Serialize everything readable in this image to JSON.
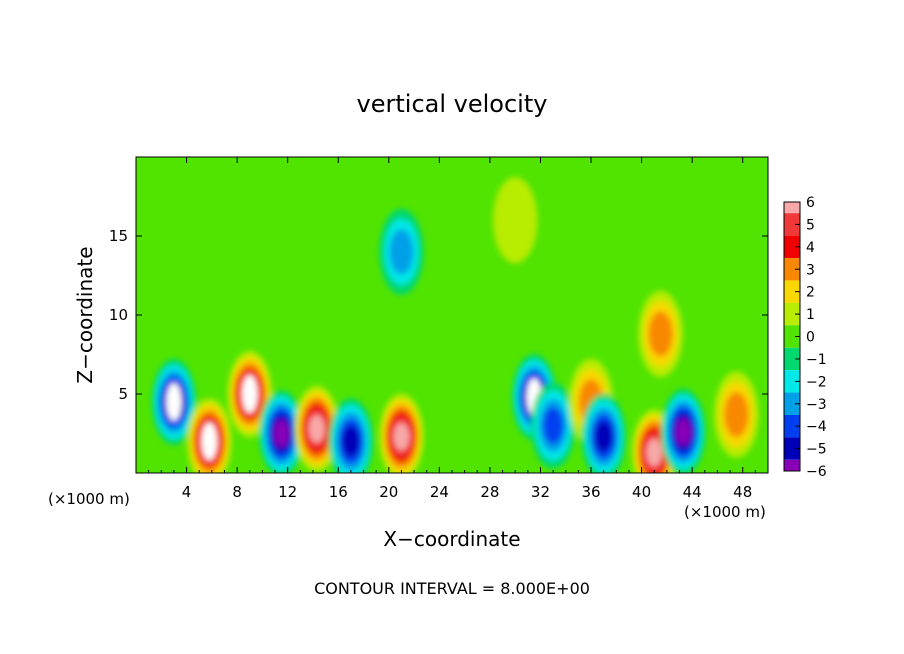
{
  "chart_data": {
    "type": "heatmap",
    "title": "vertical velocity",
    "xlabel": "X−coordinate",
    "ylabel": "Z−coordinate",
    "x_unit_left": "(×1000 m)",
    "x_unit_right": "(×1000 m)",
    "xlim": [
      0,
      50
    ],
    "ylim": [
      0,
      20
    ],
    "x_ticks": [
      "4",
      "8",
      "12",
      "16",
      "20",
      "24",
      "28",
      "32",
      "36",
      "40",
      "44",
      "48"
    ],
    "y_ticks": [
      "5",
      "10",
      "15"
    ],
    "colorbar": {
      "labels": [
        "6",
        "5",
        "4",
        "3",
        "2",
        "1",
        "0",
        "−1",
        "−2",
        "−3",
        "−4",
        "−5",
        "−6"
      ],
      "range": [
        -6,
        6
      ]
    },
    "footer": "CONTOUR INTERVAL = 8.000E+00",
    "features": [
      {
        "x": 3.0,
        "z": 4.5,
        "value": -7
      },
      {
        "x": 5.8,
        "z": 2.0,
        "value": 7
      },
      {
        "x": 9.0,
        "z": 5.0,
        "value": 7
      },
      {
        "x": 11.5,
        "z": 2.5,
        "value": -6
      },
      {
        "x": 14.3,
        "z": 2.8,
        "value": 6
      },
      {
        "x": 17.0,
        "z": 2.0,
        "value": -5
      },
      {
        "x": 21.0,
        "z": 2.3,
        "value": 6
      },
      {
        "x": 31.5,
        "z": 4.8,
        "value": -7
      },
      {
        "x": 33.0,
        "z": 3.0,
        "value": -4
      },
      {
        "x": 21.0,
        "z": 14.0,
        "value": -3
      },
      {
        "x": 36.0,
        "z": 4.5,
        "value": 2.5
      },
      {
        "x": 37.0,
        "z": 2.3,
        "value": -5
      },
      {
        "x": 41.0,
        "z": 1.3,
        "value": 6
      },
      {
        "x": 43.3,
        "z": 2.6,
        "value": -6
      },
      {
        "x": 47.5,
        "z": 3.7,
        "value": 2.5
      },
      {
        "x": 30.0,
        "z": 16.0,
        "value": 1
      },
      {
        "x": 41.5,
        "z": 8.8,
        "value": 2.5
      }
    ],
    "colors": {
      "6": "#f8a8a8",
      "5": "#f03838",
      "4": "#f00000",
      "3": "#f88800",
      "2": "#f8d800",
      "1": "#b8ec00",
      "0": "#50e400",
      "-1": "#00d870",
      "-2": "#00e8e8",
      "-3": "#00a0e8",
      "-4": "#0040f0",
      "-5": "#0000b8",
      "-6": "#8800b8"
    }
  }
}
